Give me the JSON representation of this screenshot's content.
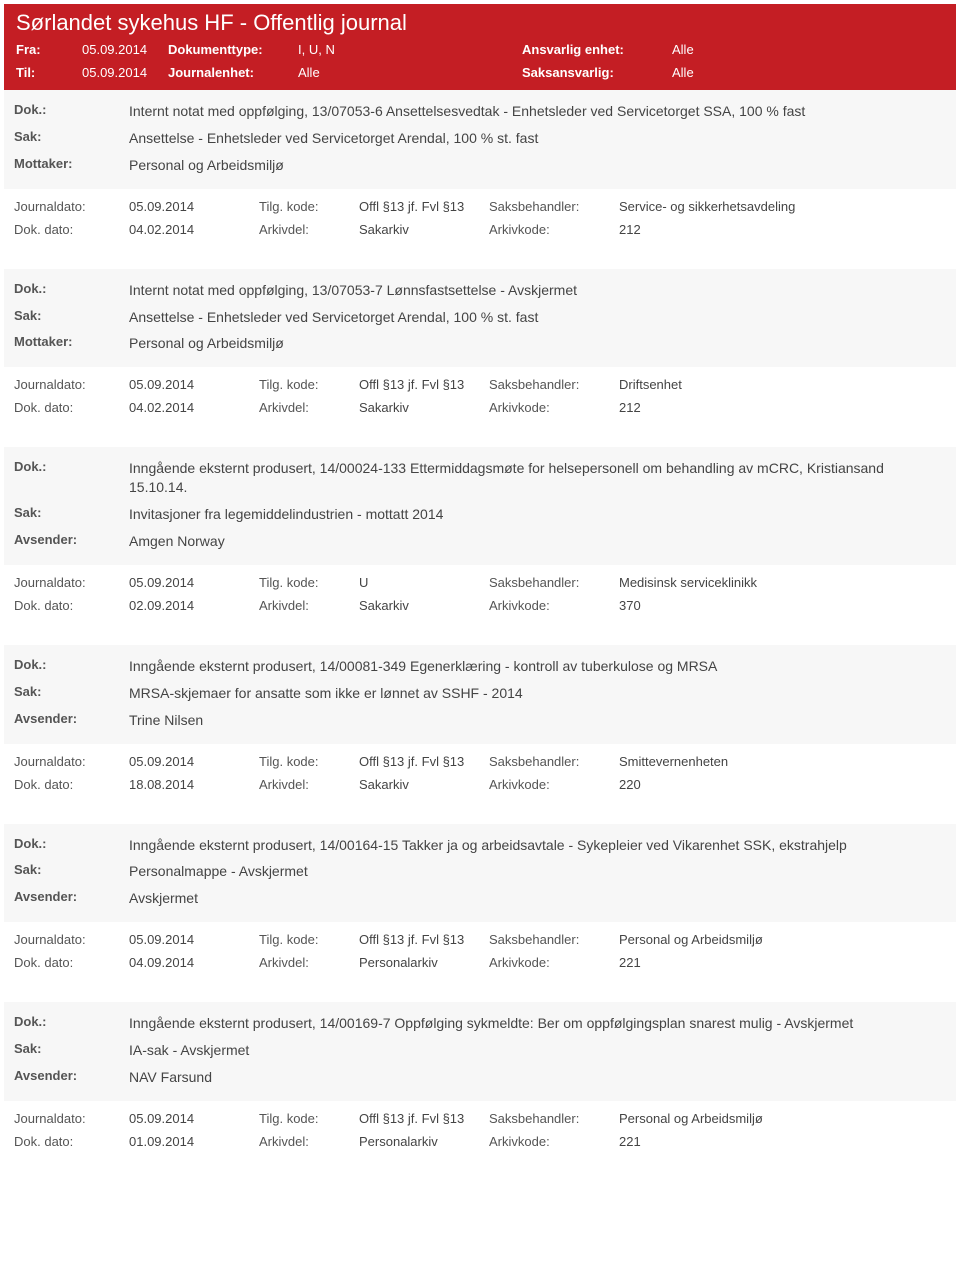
{
  "banner": {
    "title": "Sørlandet sykehus HF - Offentlig journal",
    "fraLabel": "Fra:",
    "fraValue": "05.09.2014",
    "tilLabel": "Til:",
    "tilValue": "05.09.2014",
    "doktypeLabel": "Dokumenttype:",
    "doktypeValue": "I, U, N",
    "journalenhetLabel": "Journalenhet:",
    "journalenhetValue": "Alle",
    "ansvarligEnhetLabel": "Ansvarlig enhet:",
    "ansvarligEnhetValue": "Alle",
    "saksansvarligLabel": "Saksansvarlig:",
    "saksansvarligValue": "Alle"
  },
  "labels": {
    "dok": "Dok.:",
    "sak": "Sak:",
    "mottaker": "Mottaker:",
    "avsender": "Avsender:",
    "journaldato": "Journaldato:",
    "dokdato": "Dok. dato:",
    "tilgkode": "Tilg. kode:",
    "arkivdel": "Arkivdel:",
    "saksbehandler": "Saksbehandler:",
    "arkivkode": "Arkivkode:"
  },
  "entries": [
    {
      "dok": "Internt notat med oppfølging, 13/07053-6 Ansettelsesvedtak - Enhetsleder ved Servicetorget SSA, 100 % fast",
      "sak": "Ansettelse - Enhetsleder ved Servicetorget Arendal, 100 % st. fast",
      "partyLabel": "Mottaker:",
      "party": "Personal og Arbeidsmiljø",
      "journaldato": "05.09.2014",
      "tilgkode": "Offl §13 jf. Fvl §13",
      "saksbehandler": "Service- og sikkerhetsavdeling",
      "dokdato": "04.02.2014",
      "arkivdel": "Sakarkiv",
      "arkivkode": "212"
    },
    {
      "dok": "Internt notat med oppfølging, 13/07053-7 Lønnsfastsettelse - Avskjermet",
      "sak": "Ansettelse - Enhetsleder ved Servicetorget Arendal, 100 % st. fast",
      "partyLabel": "Mottaker:",
      "party": "Personal og Arbeidsmiljø",
      "journaldato": "05.09.2014",
      "tilgkode": "Offl §13 jf. Fvl §13",
      "saksbehandler": "Driftsenhet",
      "dokdato": "04.02.2014",
      "arkivdel": "Sakarkiv",
      "arkivkode": "212"
    },
    {
      "dok": "Inngående eksternt produsert, 14/00024-133 Ettermiddagsmøte for helsepersonell om behandling av mCRC, Kristiansand 15.10.14.",
      "sak": "Invitasjoner fra legemiddelindustrien - mottatt 2014",
      "partyLabel": "Avsender:",
      "party": "Amgen Norway",
      "journaldato": "05.09.2014",
      "tilgkode": "U",
      "saksbehandler": "Medisinsk serviceklinikk",
      "dokdato": "02.09.2014",
      "arkivdel": "Sakarkiv",
      "arkivkode": "370"
    },
    {
      "dok": "Inngående eksternt produsert, 14/00081-349 Egenerklæring - kontroll av tuberkulose og MRSA",
      "sak": "MRSA-skjemaer for ansatte som ikke er lønnet av SSHF - 2014",
      "partyLabel": "Avsender:",
      "party": "Trine Nilsen",
      "journaldato": "05.09.2014",
      "tilgkode": "Offl §13 jf. Fvl §13",
      "saksbehandler": "Smittevernenheten",
      "dokdato": "18.08.2014",
      "arkivdel": "Sakarkiv",
      "arkivkode": "220"
    },
    {
      "dok": "Inngående eksternt produsert, 14/00164-15 Takker ja og arbeidsavtale - Sykepleier ved Vikarenhet SSK, ekstrahjelp",
      "sak": "Personalmappe - Avskjermet",
      "partyLabel": "Avsender:",
      "party": "Avskjermet",
      "journaldato": "05.09.2014",
      "tilgkode": "Offl §13 jf. Fvl §13",
      "saksbehandler": "Personal og Arbeidsmiljø",
      "dokdato": "04.09.2014",
      "arkivdel": "Personalarkiv",
      "arkivkode": "221"
    },
    {
      "dok": "Inngående eksternt produsert, 14/00169-7 Oppfølging sykmeldte: Ber om oppfølgingsplan snarest mulig - Avskjermet",
      "sak": "IA-sak - Avskjermet",
      "partyLabel": "Avsender:",
      "party": "NAV Farsund",
      "journaldato": "05.09.2014",
      "tilgkode": "Offl §13 jf. Fvl §13",
      "saksbehandler": "Personal og Arbeidsmiljø",
      "dokdato": "01.09.2014",
      "arkivdel": "Personalarkiv",
      "arkivkode": "221"
    }
  ]
}
